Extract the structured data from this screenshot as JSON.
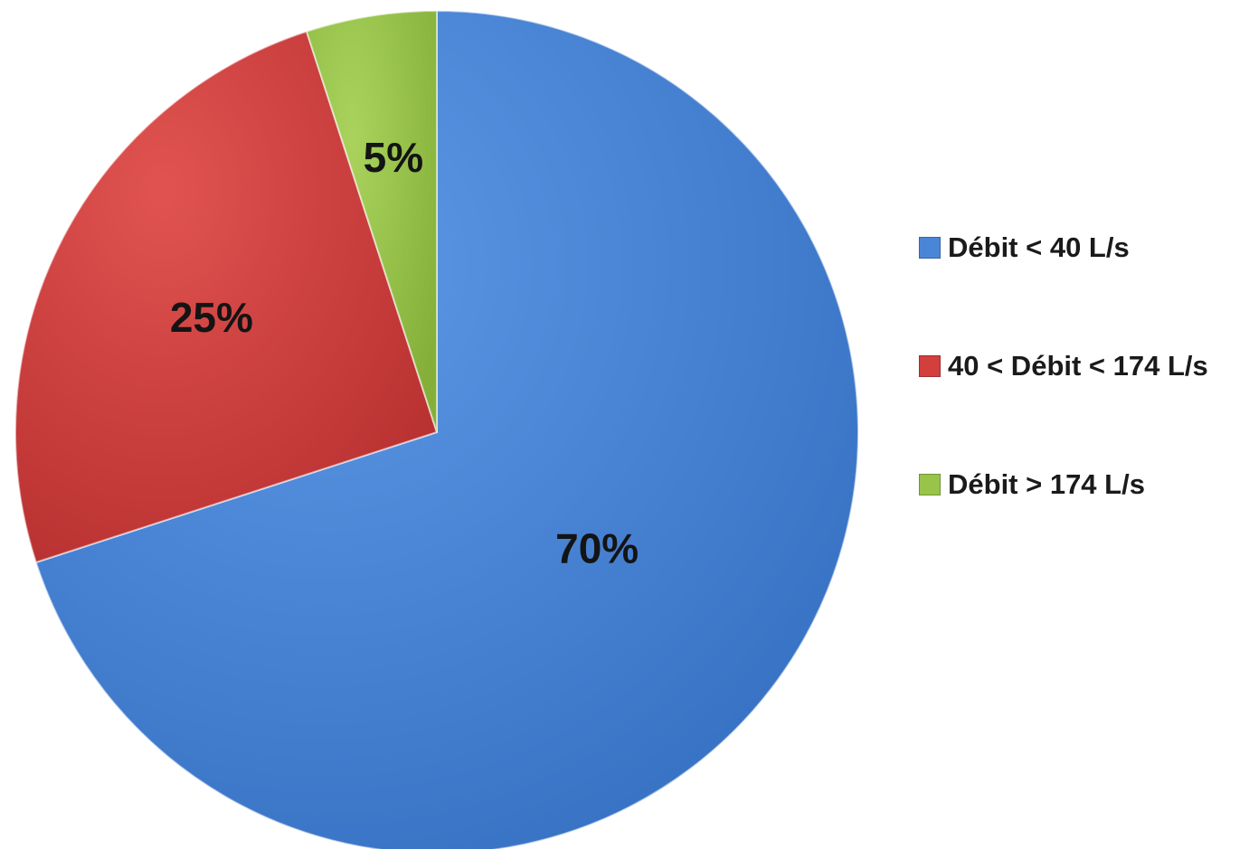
{
  "chart_data": {
    "type": "pie",
    "title": "",
    "categories": [
      "Débit < 40 L/s",
      "40 < Débit < 174 L/s",
      "Débit > 174 L/s"
    ],
    "values": [
      70,
      25,
      5
    ],
    "data_labels": [
      "70%",
      "25%",
      "5%"
    ],
    "colors": [
      "#4a86d8",
      "#d23f3c",
      "#98c44a"
    ],
    "start_angle_deg": 0,
    "direction": "clockwise",
    "legend": {
      "placement": "right",
      "entries": [
        {
          "label": "Débit < 40 L/s",
          "color": "#4a86d8"
        },
        {
          "label": "40 < Débit < 174 L/s",
          "color": "#d23f3c"
        },
        {
          "label": "Débit > 174 L/s",
          "color": "#98c44a"
        }
      ]
    }
  }
}
